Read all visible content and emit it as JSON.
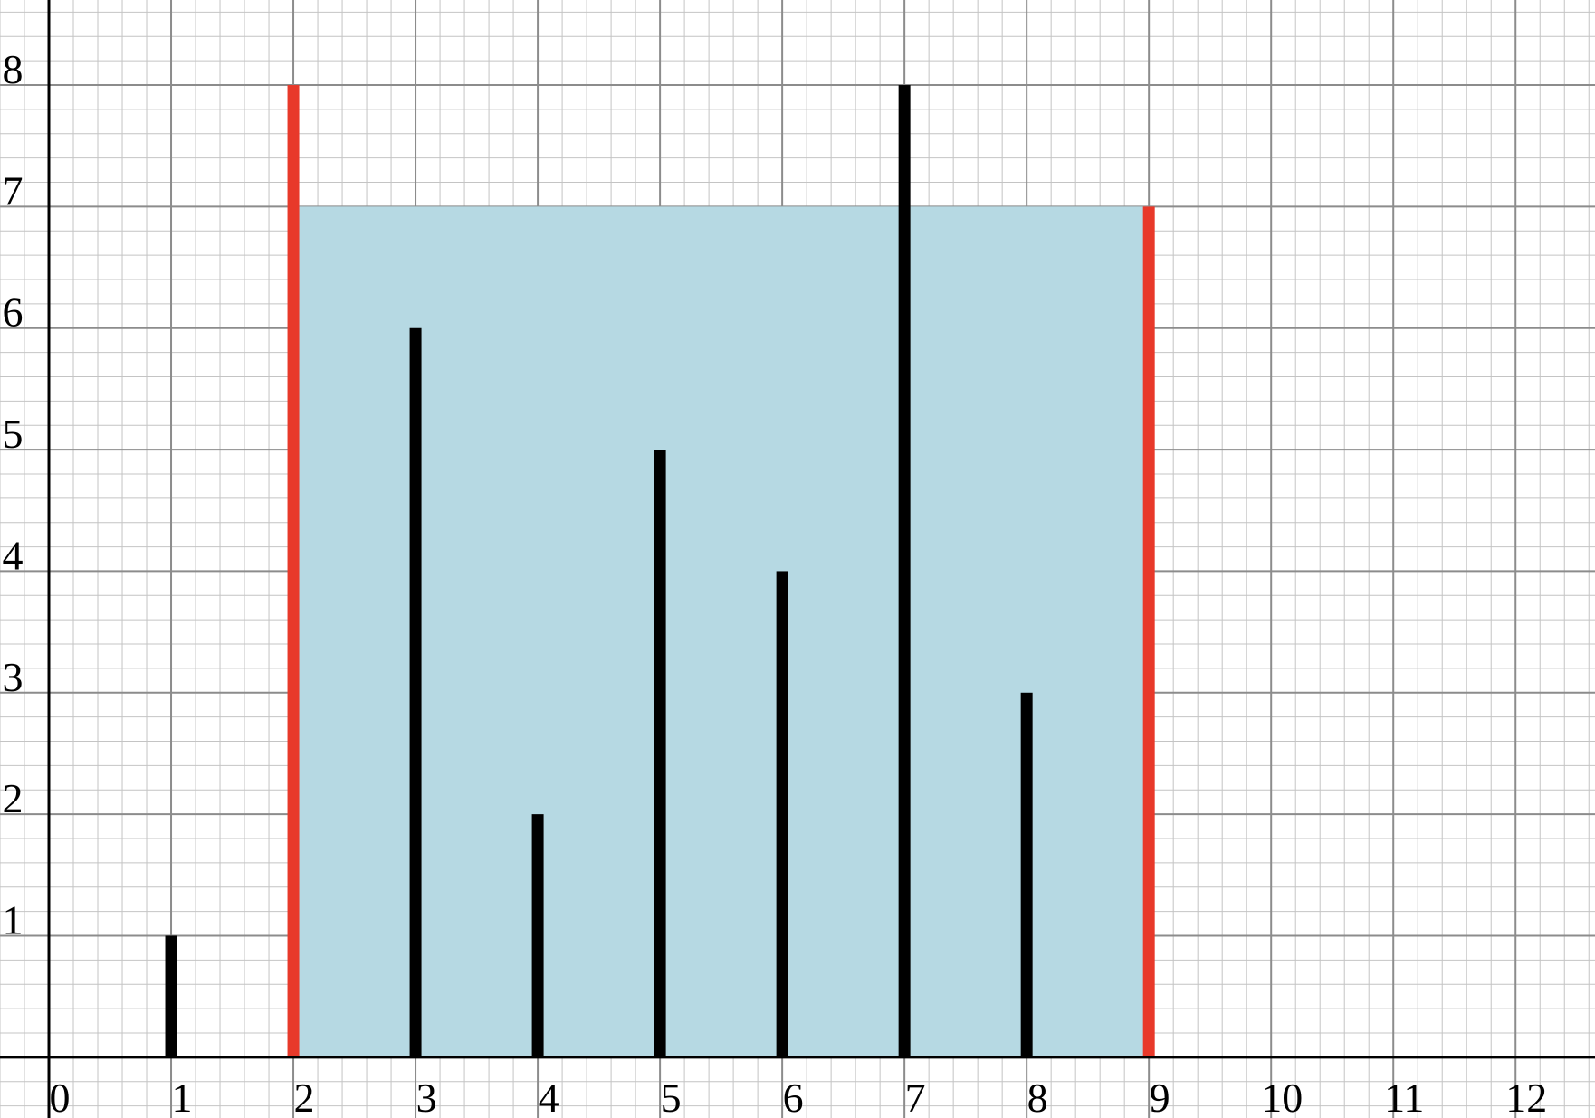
{
  "chart_data": {
    "type": "bar",
    "title": "",
    "xlabel": "",
    "ylabel": "",
    "xlim": [
      -0.4,
      12.65
    ],
    "ylim": [
      -0.5,
      8.7
    ],
    "grid": true,
    "x_ticks": [
      "0",
      "1",
      "2",
      "3",
      "4",
      "5",
      "6",
      "7",
      "8",
      "9",
      "10",
      "11",
      "12"
    ],
    "y_ticks": [
      "1",
      "2",
      "3",
      "4",
      "5",
      "6",
      "7",
      "8"
    ],
    "categories": [
      "1",
      "2",
      "3",
      "4",
      "5",
      "6",
      "7",
      "8",
      "9"
    ],
    "values": [
      1,
      8,
      6,
      2,
      5,
      4,
      8,
      3,
      7
    ],
    "highlighted": [
      "2",
      "9"
    ],
    "shaded_region": {
      "x_start": 2,
      "x_end": 9,
      "height": 7
    },
    "colors": {
      "bar": "#000000",
      "highlight_bar": "#e8392a",
      "fill": "#b6d9e3",
      "major_grid": "#8c8c8c",
      "minor_grid": "#c4c4c4",
      "axis": "#000000"
    }
  }
}
